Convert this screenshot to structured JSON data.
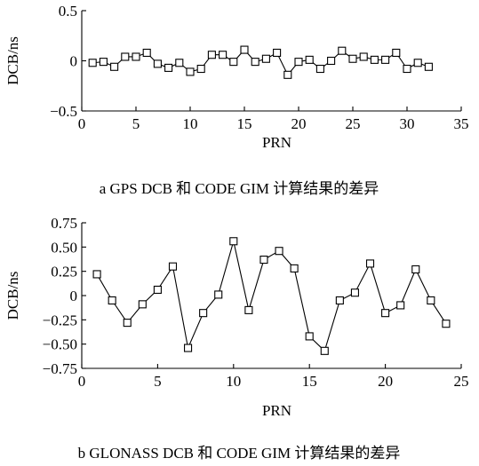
{
  "chart_data": [
    {
      "type": "line",
      "caption": "a GPS DCB 和 CODE GIM 计算结果的差异",
      "xlabel": "PRN",
      "ylabel": "DCB/ns",
      "xlim": [
        0,
        35
      ],
      "ylim": [
        -0.5,
        0.5
      ],
      "xticks": [
        0,
        5,
        10,
        15,
        20,
        25,
        30,
        35
      ],
      "yticks": [
        -0.5,
        0,
        0.5
      ],
      "ytick_labels": [
        "−0.5",
        "0",
        "0.5"
      ],
      "marker": "open-square",
      "series": [
        {
          "x": [
            1,
            2,
            3,
            4,
            5,
            6,
            7,
            8,
            9,
            10,
            11,
            12,
            13,
            14,
            15,
            16,
            17,
            18,
            19,
            20,
            21,
            22,
            23,
            24,
            25,
            26,
            27,
            28,
            29,
            30,
            31,
            32
          ],
          "y": [
            -0.02,
            -0.01,
            -0.06,
            0.04,
            0.04,
            0.08,
            -0.03,
            -0.07,
            -0.02,
            -0.11,
            -0.08,
            0.06,
            0.06,
            -0.01,
            0.11,
            -0.01,
            0.02,
            0.08,
            -0.14,
            -0.01,
            0.01,
            -0.08,
            0.0,
            0.1,
            0.02,
            0.04,
            0.01,
            0.01,
            0.08,
            -0.08,
            -0.02,
            -0.06
          ]
        }
      ]
    },
    {
      "type": "line",
      "caption": "b GLONASS DCB 和 CODE GIM 计算结果的差异",
      "xlabel": "PRN",
      "ylabel": "DCB/ns",
      "xlim": [
        0,
        25
      ],
      "ylim": [
        -0.75,
        0.75
      ],
      "xticks": [
        0,
        5,
        10,
        15,
        20,
        25
      ],
      "yticks": [
        -0.75,
        -0.5,
        -0.25,
        0,
        0.25,
        0.5,
        0.75
      ],
      "ytick_labels": [
        "−0.75",
        "−0.50",
        "−0.25",
        "0",
        "0.25",
        "0.50",
        "0.75"
      ],
      "marker": "open-square",
      "series": [
        {
          "x": [
            1,
            2,
            3,
            4,
            5,
            6,
            7,
            8,
            9,
            10,
            11,
            12,
            13,
            14,
            15,
            16,
            17,
            18,
            19,
            20,
            21,
            22,
            23,
            24
          ],
          "y": [
            0.22,
            -0.05,
            -0.28,
            -0.09,
            0.06,
            0.3,
            -0.54,
            -0.18,
            0.01,
            0.56,
            -0.15,
            0.37,
            0.46,
            0.28,
            -0.42,
            -0.57,
            -0.05,
            0.03,
            0.33,
            -0.18,
            -0.1,
            0.27,
            -0.05,
            -0.29
          ]
        }
      ]
    }
  ]
}
